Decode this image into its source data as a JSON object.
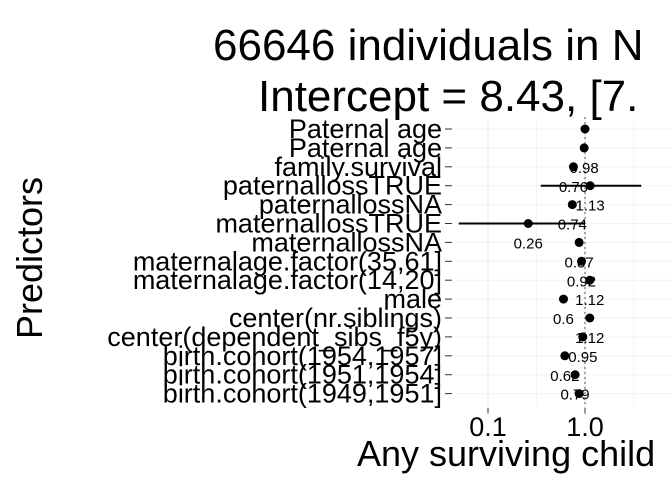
{
  "chart_data": {
    "type": "forest",
    "title": [
      "66646 individuals in N",
      "Intercept = 8.43, [7."
    ],
    "xlabel": "Any surviving child",
    "ylabel": "Predictors",
    "x_scale": "log",
    "xlim": [
      0.05,
      2.5
    ],
    "xticks": [
      {
        "value": 0.1,
        "label": "0.1"
      },
      {
        "value": 1.0,
        "label": "1.0"
      }
    ],
    "reference_line": 1.0,
    "grid": true,
    "rows": [
      {
        "label": "Paternal age",
        "estimate": 1.0,
        "label_text": ""
      },
      {
        "label": "Paternal age",
        "estimate": 0.98,
        "label_text": "0.98"
      },
      {
        "label": "family.survival",
        "estimate": 0.76,
        "label_text": "0.76"
      },
      {
        "label": "paternallossTRUE",
        "estimate": 1.13,
        "ci": [
          0.35,
          3.8
        ],
        "label_text": "1.13"
      },
      {
        "label": "paternallossNA",
        "estimate": 0.74,
        "label_text": "0.74"
      },
      {
        "label": "maternallossTRUE",
        "estimate": 0.26,
        "ci": [
          0.05,
          1.0
        ],
        "label_text": "0.26"
      },
      {
        "label": "maternallossNA",
        "estimate": 0.87,
        "label_text": "0.87"
      },
      {
        "label": "maternalage.factor(35,61]",
        "estimate": 0.92,
        "label_text": "0.92"
      },
      {
        "label": "maternalage.factor(14,20]",
        "estimate": 1.12,
        "label_text": "1.12"
      },
      {
        "label": "male",
        "estimate": 0.6,
        "label_text": "0.6"
      },
      {
        "label": "center(nr.siblings)",
        "estimate": 1.12,
        "label_text": "1.12"
      },
      {
        "label": "center(dependent_sibs_f5y)",
        "estimate": 0.95,
        "label_text": "0.95"
      },
      {
        "label": "birth.cohort(1954,1957]",
        "estimate": 0.62,
        "label_text": "0.62"
      },
      {
        "label": "birth.cohort(1951,1954]",
        "estimate": 0.79,
        "label_text": "0.79"
      },
      {
        "label": "birth.cohort(1949,1951]",
        "estimate": 0.87,
        "label_text": ""
      }
    ]
  }
}
